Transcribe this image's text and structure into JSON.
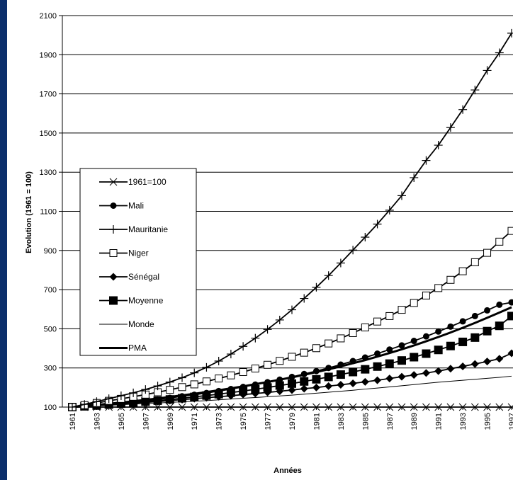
{
  "chart_data": {
    "type": "line",
    "xlabel": "Années",
    "ylabel": "Evolution (1961 = 100)",
    "ylim": [
      100,
      2100
    ],
    "yticks": [
      100,
      300,
      500,
      700,
      900,
      1100,
      1300,
      1500,
      1700,
      1900,
      2100
    ],
    "x": [
      1961,
      1962,
      1963,
      1964,
      1965,
      1966,
      1967,
      1968,
      1969,
      1970,
      1971,
      1972,
      1973,
      1974,
      1975,
      1976,
      1977,
      1978,
      1979,
      1980,
      1981,
      1982,
      1983,
      1984,
      1985,
      1986,
      1987,
      1988,
      1989,
      1990,
      1991,
      1992,
      1993,
      1994,
      1995,
      1996,
      1997
    ],
    "xtick_labels": [
      "1961",
      "1963",
      "1965",
      "1967",
      "1969",
      "1971",
      "1973",
      "1975",
      "1977",
      "1979",
      "1981",
      "1983",
      "1985",
      "1987",
      "1989",
      "1991",
      "1993",
      "1995",
      "1997"
    ],
    "grid": "horizontal",
    "legend_position": "left-center",
    "series": [
      {
        "name": "1961=100",
        "marker": "x",
        "values": [
          100,
          100,
          100,
          100,
          100,
          100,
          100,
          100,
          100,
          100,
          100,
          100,
          100,
          100,
          100,
          100,
          100,
          100,
          100,
          100,
          100,
          100,
          100,
          100,
          100,
          100,
          100,
          100,
          100,
          100,
          100,
          100,
          100,
          100,
          100,
          100,
          100
        ]
      },
      {
        "name": "Mali",
        "marker": "circle",
        "values": [
          100,
          104,
          109,
          114,
          120,
          126,
          132,
          139,
          147,
          155,
          163,
          172,
          182,
          192,
          203,
          215,
          227,
          240,
          254,
          269,
          284,
          300,
          317,
          335,
          353,
          373,
          394,
          415,
          438,
          461,
          486,
          511,
          538,
          565,
          594,
          623,
          635
        ]
      },
      {
        "name": "Mauritanie",
        "marker": "plus",
        "values": [
          100,
          114,
          128,
          143,
          158,
          173,
          190,
          208,
          228,
          250,
          275,
          303,
          335,
          371,
          410,
          452,
          497,
          545,
          597,
          655,
          712,
          772,
          836,
          902,
          968,
          1035,
          1106,
          1180,
          1272,
          1360,
          1438,
          1528,
          1620,
          1720,
          1820,
          1910,
          2010
        ]
      },
      {
        "name": "Niger",
        "marker": "square-open",
        "values": [
          100,
          110,
          121,
          132,
          142,
          153,
          164,
          176,
          188,
          202,
          216,
          231,
          246,
          262,
          279,
          297,
          316,
          336,
          357,
          378,
          401,
          425,
          451,
          478,
          507,
          537,
          565,
          597,
          632,
          670,
          708,
          750,
          794,
          840,
          888,
          945,
          1000
        ]
      },
      {
        "name": "Sénégal",
        "marker": "diamond",
        "values": [
          100,
          104,
          108,
          112,
          116,
          120,
          124,
          128,
          133,
          138,
          143,
          148,
          153,
          158,
          164,
          169,
          175,
          181,
          187,
          194,
          200,
          207,
          214,
          221,
          229,
          237,
          246,
          255,
          264,
          274,
          284,
          296,
          308,
          320,
          333,
          347,
          375
        ]
      },
      {
        "name": "Moyenne",
        "marker": "square-filled",
        "values": [
          100,
          104,
          108,
          113,
          118,
          123,
          128,
          133,
          139,
          145,
          152,
          159,
          166,
          174,
          182,
          191,
          200,
          210,
          220,
          231,
          242,
          254,
          266,
          279,
          293,
          307,
          322,
          338,
          355,
          373,
          392,
          412,
          433,
          455,
          488,
          515,
          565
        ]
      },
      {
        "name": "Monde",
        "marker": "none",
        "values": [
          100,
          103,
          106,
          109,
          112,
          115,
          118,
          121,
          124,
          127,
          130,
          133,
          137,
          141,
          145,
          149,
          153,
          157,
          161,
          166,
          171,
          176,
          181,
          186,
          192,
          197,
          203,
          209,
          215,
          221,
          227,
          232,
          237,
          242,
          247,
          252,
          258
        ]
      },
      {
        "name": "PMA",
        "marker": "thick-line",
        "values": [
          100,
          105,
          111,
          117,
          123,
          130,
          137,
          144,
          152,
          160,
          168,
          177,
          186,
          196,
          206,
          217,
          228,
          240,
          252,
          265,
          279,
          293,
          308,
          324,
          340,
          358,
          376,
          395,
          415,
          436,
          458,
          481,
          505,
          530,
          556,
          583,
          610
        ]
      }
    ]
  }
}
